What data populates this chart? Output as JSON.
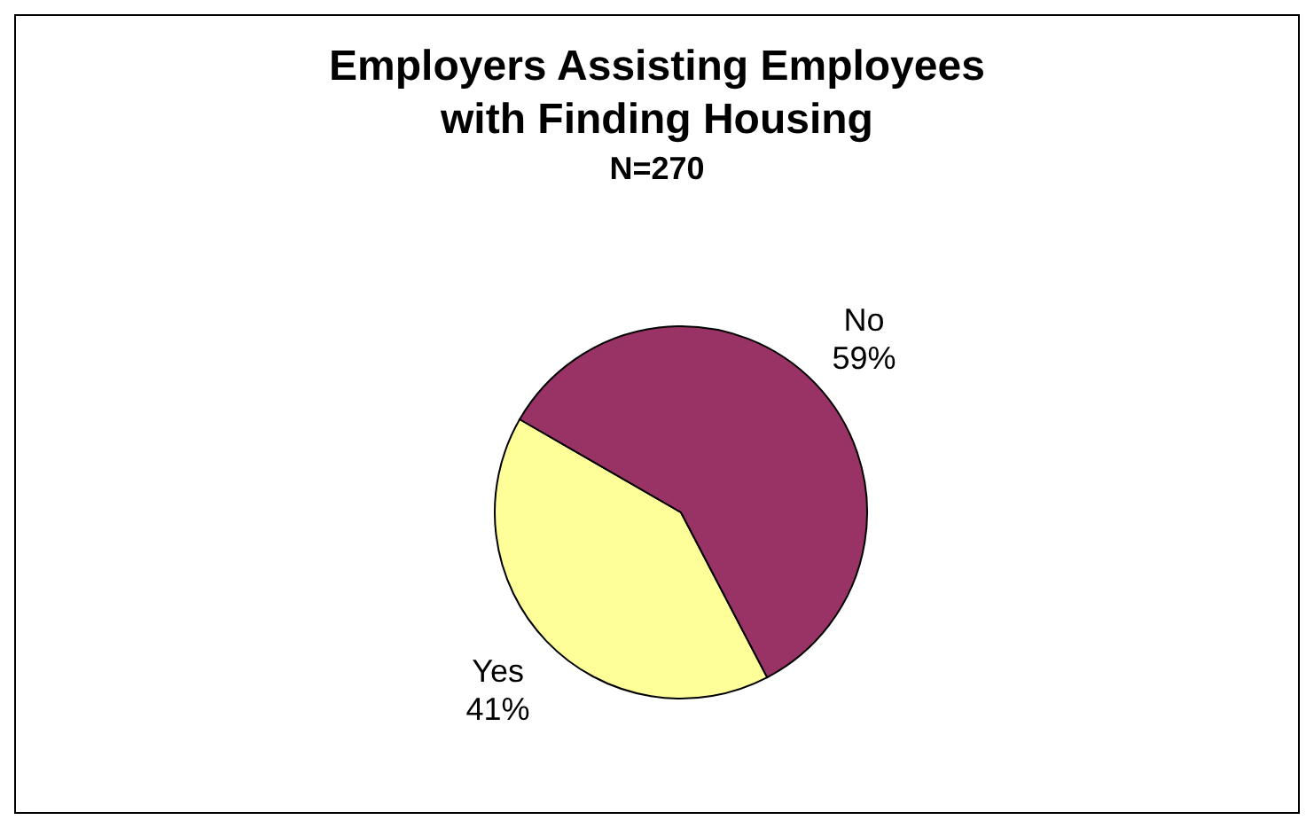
{
  "chart_data": {
    "type": "pie",
    "title": "Employers Assisting Employees with Finding Housing",
    "subtitle": "N=270",
    "categories": [
      "Yes",
      "No"
    ],
    "values": [
      41,
      59
    ],
    "value_labels": [
      "41%",
      "59%"
    ],
    "colors": [
      "#ffff99",
      "#993366"
    ]
  }
}
